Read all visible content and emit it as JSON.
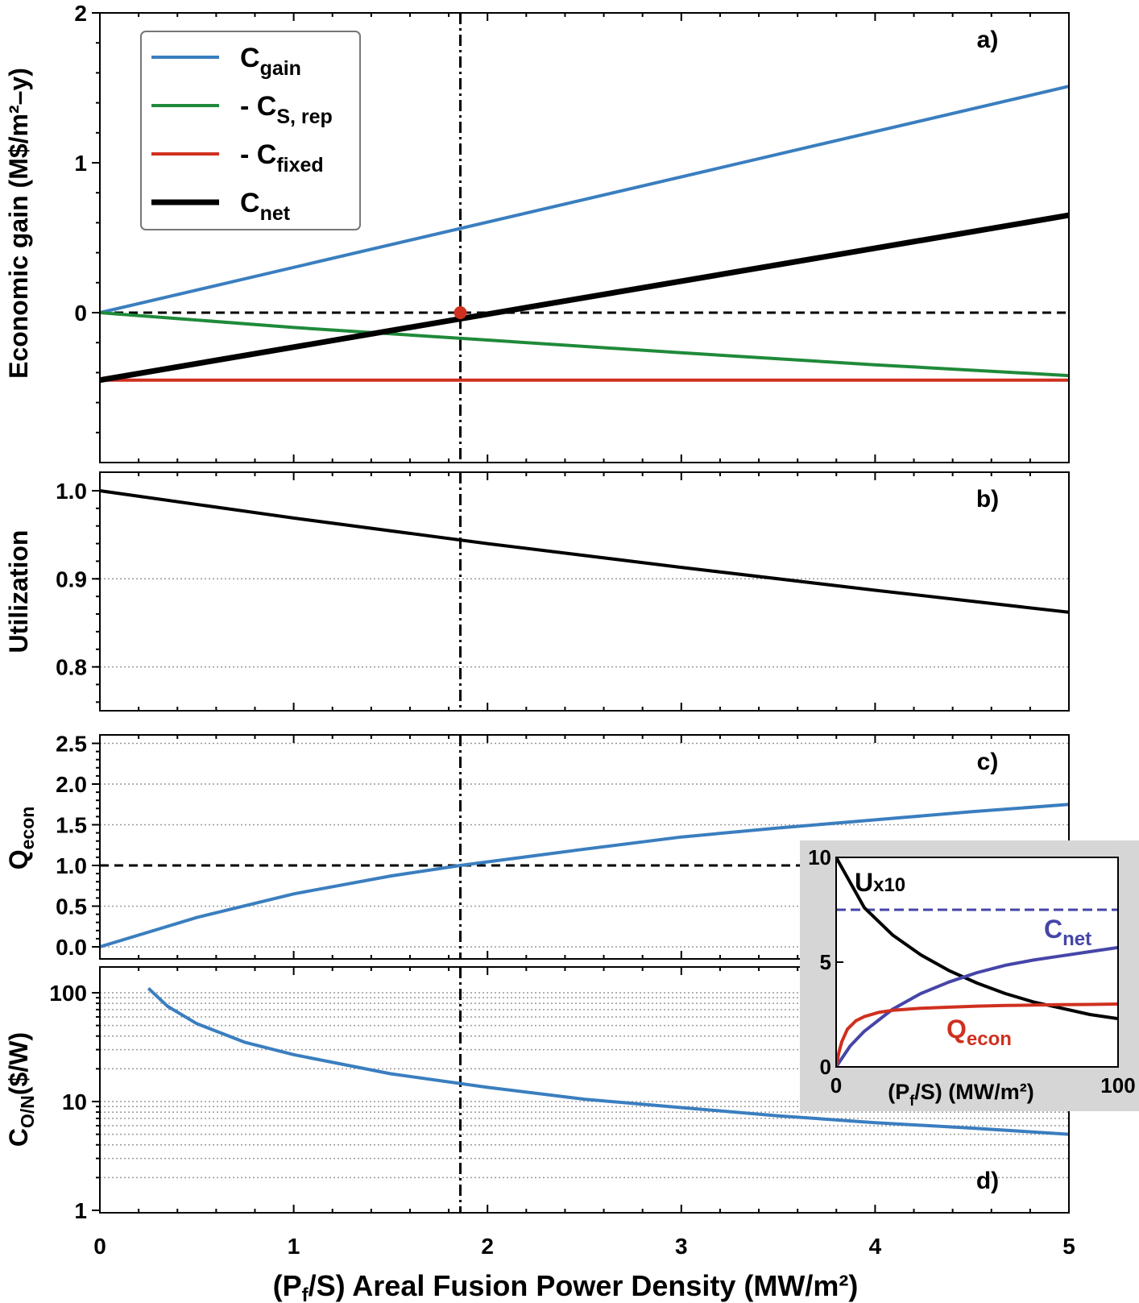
{
  "chart_data": [
    {
      "id": "a",
      "type": "line",
      "panel_label": "a)",
      "ylabel": "Economic gain (M$/m²–y)",
      "xlim": [
        0,
        5
      ],
      "ylim": [
        -1,
        2
      ],
      "yticks": [
        "0",
        "1",
        "2"
      ],
      "legend_placement": "top-left",
      "series": [
        {
          "name": "C_gain",
          "legend_main": "C",
          "legend_sub": "gain",
          "legend_prefix": "",
          "color": "#3a7ebf",
          "x": [
            0,
            5
          ],
          "y": [
            0,
            1.51
          ]
        },
        {
          "name": "- C_S,rep",
          "legend_main": "C",
          "legend_sub": "S, rep",
          "legend_prefix": "- ",
          "color": "#1f8a3a",
          "x": [
            0,
            1,
            2,
            3,
            4,
            5
          ],
          "y": [
            0,
            -0.099,
            -0.183,
            -0.268,
            -0.348,
            -0.42
          ]
        },
        {
          "name": "- C_fixed",
          "legend_main": "C",
          "legend_sub": "fixed",
          "legend_prefix": "- ",
          "color": "#d0301f",
          "x": [
            0,
            5
          ],
          "y": [
            -0.45,
            -0.45
          ]
        },
        {
          "name": "C_net",
          "legend_main": "C",
          "legend_sub": "net",
          "legend_prefix": "",
          "color": "#000000",
          "x": [
            0,
            5
          ],
          "y": [
            -0.45,
            0.65
          ]
        }
      ],
      "zero_line": 0,
      "breakeven_point": {
        "x": 1.86,
        "y": 0,
        "color": "#d0301f"
      }
    },
    {
      "id": "b",
      "type": "line",
      "panel_label": "b)",
      "ylabel": "Utilization",
      "xlim": [
        0,
        5
      ],
      "ylim": [
        0.75,
        1.0
      ],
      "yticks": [
        "0.8",
        "0.9",
        "1.0"
      ],
      "grid": "dotted",
      "series": [
        {
          "color": "#000000",
          "x": [
            0,
            1,
            2,
            3,
            4,
            5
          ],
          "y": [
            1.0,
            0.969,
            0.94,
            0.913,
            0.887,
            0.862
          ]
        }
      ]
    },
    {
      "id": "c",
      "type": "line",
      "panel_label": "c)",
      "ylabel_main": "Q",
      "ylabel_sub": "econ",
      "xlim": [
        0,
        5
      ],
      "ylim": [
        -0.05,
        2.6
      ],
      "yticks": [
        "0.0",
        "0.5",
        "1.0",
        "1.5",
        "2.0",
        "2.5"
      ],
      "grid": "dotted",
      "reference_line": 1.0,
      "series": [
        {
          "color": "#3a7ebf",
          "x": [
            0,
            0.5,
            1,
            1.5,
            1.86,
            2.5,
            3,
            3.5,
            4,
            4.5,
            5
          ],
          "y": [
            0,
            0.36,
            0.65,
            0.87,
            1.0,
            1.2,
            1.35,
            1.46,
            1.56,
            1.66,
            1.75
          ]
        }
      ]
    },
    {
      "id": "d",
      "type": "line",
      "panel_label": "d)",
      "ylabel_main": "C",
      "ylabel_sub": "O/N",
      "ylabel_unit": "($/W)",
      "xlim": [
        0,
        5
      ],
      "ylim": [
        1,
        110
      ],
      "yscale": "log",
      "yticks": [
        "1",
        "10",
        "100"
      ],
      "grid": "dotted",
      "series": [
        {
          "color": "#3a7ebf",
          "x": [
            0.25,
            0.35,
            0.5,
            0.75,
            1,
            1.5,
            2,
            2.5,
            3,
            3.5,
            4,
            4.5,
            5
          ],
          "y": [
            110,
            75,
            52,
            35,
            27,
            18,
            13.5,
            10.5,
            8.8,
            7.4,
            6.4,
            5.7,
            5.0
          ]
        }
      ]
    },
    {
      "id": "inset",
      "type": "line",
      "xlim": [
        0,
        100
      ],
      "ylim": [
        0,
        10
      ],
      "xticks": [
        "0",
        "100"
      ],
      "yticks": [
        "0",
        "5",
        "10"
      ],
      "xlabel_pre": "(P",
      "xlabel_sub": "f",
      "xlabel_post": "/S) (MW/m²)",
      "series": [
        {
          "name": "Ux10",
          "label_main": "U",
          "label_sub": "x10",
          "color": "#000000",
          "x": [
            0,
            5,
            10,
            20,
            30,
            40,
            50,
            60,
            70,
            80,
            90,
            100
          ],
          "y": [
            10,
            8.8,
            7.6,
            6.3,
            5.35,
            4.6,
            4.0,
            3.5,
            3.1,
            2.8,
            2.5,
            2.3
          ]
        },
        {
          "name": "Cnet",
          "label_main": "C",
          "label_sub": "net",
          "color": "#4545a8",
          "x": [
            0,
            5,
            10,
            20,
            30,
            40,
            50,
            60,
            70,
            80,
            90,
            100
          ],
          "y": [
            0,
            1.0,
            1.7,
            2.75,
            3.5,
            4.05,
            4.5,
            4.85,
            5.1,
            5.3,
            5.5,
            5.7
          ]
        },
        {
          "name": "Qecon",
          "label_main": "Q",
          "label_sub": "econ",
          "color": "#d0301f",
          "x": [
            0,
            1,
            2,
            4,
            7,
            10,
            15,
            20,
            30,
            40,
            50,
            60,
            70,
            80,
            90,
            100
          ],
          "y": [
            0,
            0.7,
            1.2,
            1.8,
            2.2,
            2.4,
            2.6,
            2.7,
            2.8,
            2.85,
            2.9,
            2.93,
            2.95,
            2.97,
            2.98,
            3.0
          ]
        }
      ],
      "asymptote": {
        "y": 7.5,
        "color": "#4545a8"
      }
    }
  ],
  "shared_x": {
    "ticks": [
      "0",
      "1",
      "2",
      "3",
      "4",
      "5"
    ],
    "xlabel_pre": "(P",
    "xlabel_sub": "f",
    "xlabel_post": "/S) Areal Fusion Power Density (MW/m²)",
    "vline_x": 1.86
  }
}
